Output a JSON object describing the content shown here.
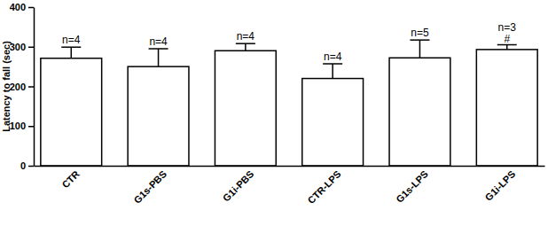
{
  "chart_data": {
    "type": "bar",
    "y_label": "Latency to fall (sec)",
    "categories": [
      "CTR",
      "G1s-PBS",
      "G1i-PBS",
      "CTR-LPS",
      "G1s-LPS",
      "G1i-LPS"
    ],
    "values": [
      271,
      250,
      290,
      220,
      272,
      293
    ],
    "errors": [
      28,
      45,
      18,
      37,
      45,
      12
    ],
    "n_labels": [
      "n=4",
      "n=4",
      "n=4",
      "n=4",
      "n=5",
      "n=3"
    ],
    "annotations": [
      {
        "category": "G1i-LPS",
        "text": "#"
      }
    ],
    "color": "#ffffff",
    "ylim": [
      0,
      400
    ],
    "yticks": [
      0,
      100,
      200,
      300,
      400
    ],
    "grid": false
  }
}
